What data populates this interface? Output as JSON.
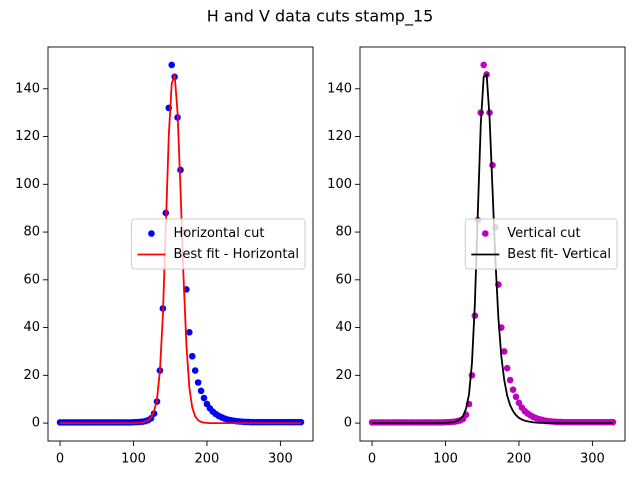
{
  "title": "H and V data cuts stamp_15",
  "chart_data": [
    {
      "type": "line",
      "legend": "center right",
      "x": [
        0,
        4,
        8,
        12,
        16,
        20,
        24,
        28,
        32,
        36,
        40,
        44,
        48,
        52,
        56,
        60,
        64,
        68,
        72,
        76,
        80,
        84,
        88,
        92,
        96,
        100,
        104,
        108,
        112,
        116,
        120,
        124,
        128,
        132,
        136,
        140,
        144,
        148,
        152,
        156,
        160,
        164,
        168,
        172,
        176,
        180,
        184,
        188,
        192,
        196,
        200,
        204,
        208,
        212,
        216,
        220,
        224,
        228,
        232,
        236,
        240,
        244,
        248,
        252,
        256,
        260,
        264,
        268,
        272,
        276,
        280,
        284,
        288,
        292,
        296,
        300,
        304,
        308,
        312,
        316,
        320,
        324,
        328
      ],
      "xlim": [
        -16.4,
        344.4
      ],
      "xticks": [
        0,
        100,
        200,
        300
      ],
      "ylim": [
        -7.5,
        157.5
      ],
      "yticks": [
        0,
        20,
        40,
        60,
        80,
        100,
        120,
        140
      ],
      "series": [
        {
          "name": "Horizontal cut",
          "kind": "scatter",
          "color": "#0000ff",
          "values": [
            0.3,
            0.3,
            0.3,
            0.3,
            0.3,
            0.3,
            0.3,
            0.3,
            0.3,
            0.3,
            0.3,
            0.3,
            0.3,
            0.3,
            0.3,
            0.3,
            0.3,
            0.3,
            0.3,
            0.3,
            0.3,
            0.3,
            0.3,
            0.3,
            0.3,
            0.4,
            0.4,
            0.5,
            0.6,
            0.8,
            1.2,
            2,
            4,
            9,
            22,
            48,
            88,
            132,
            150,
            145,
            128,
            106,
            80,
            56,
            38,
            28,
            22,
            17,
            13.5,
            10.5,
            8,
            6.2,
            4.8,
            3.8,
            3,
            2.4,
            1.9,
            1.5,
            1.2,
            1,
            0.8,
            0.7,
            0.6,
            0.5,
            0.5,
            0.4,
            0.4,
            0.4,
            0.4,
            0.4,
            0.4,
            0.4,
            0.4,
            0.4,
            0.4,
            0.4,
            0.4,
            0.4,
            0.4,
            0.4,
            0.4,
            0.4,
            0.4
          ]
        },
        {
          "name": "Best fit - Horizontal",
          "kind": "line",
          "color": "#ff0000",
          "values": [
            0,
            0,
            0,
            0,
            0,
            0,
            0,
            0,
            0,
            0,
            0,
            0,
            0,
            0,
            0,
            0,
            0,
            0,
            0,
            0,
            0,
            0,
            0,
            0,
            0,
            0,
            0.1,
            0.2,
            0.3,
            0.6,
            1.2,
            2.5,
            5,
            10,
            22,
            45,
            82,
            120,
            142,
            146,
            130,
            98,
            62,
            33,
            15,
            6.5,
            2.8,
            1.2,
            0.5,
            0.2,
            0.1,
            0,
            0,
            0,
            0,
            0,
            0,
            0,
            0,
            0,
            0,
            0,
            0,
            0,
            0,
            0,
            0,
            0,
            0,
            0,
            0,
            0,
            0,
            0,
            0,
            0,
            0,
            0,
            0,
            0,
            0,
            0,
            0
          ]
        }
      ]
    },
    {
      "type": "line",
      "legend": "center right",
      "x": [
        0,
        4,
        8,
        12,
        16,
        20,
        24,
        28,
        32,
        36,
        40,
        44,
        48,
        52,
        56,
        60,
        64,
        68,
        72,
        76,
        80,
        84,
        88,
        92,
        96,
        100,
        104,
        108,
        112,
        116,
        120,
        124,
        128,
        132,
        136,
        140,
        144,
        148,
        152,
        156,
        160,
        164,
        168,
        172,
        176,
        180,
        184,
        188,
        192,
        196,
        200,
        204,
        208,
        212,
        216,
        220,
        224,
        228,
        232,
        236,
        240,
        244,
        248,
        252,
        256,
        260,
        264,
        268,
        272,
        276,
        280,
        284,
        288,
        292,
        296,
        300,
        304,
        308,
        312,
        316,
        320,
        324,
        328
      ],
      "xlim": [
        -16.4,
        344.4
      ],
      "xticks": [
        0,
        100,
        200,
        300
      ],
      "ylim": [
        -7.5,
        157.5
      ],
      "yticks": [
        0,
        20,
        40,
        60,
        80,
        100,
        120,
        140
      ],
      "series": [
        {
          "name": "Vertical cut",
          "kind": "scatter",
          "color": "#bf00bf",
          "values": [
            0.3,
            0.3,
            0.3,
            0.3,
            0.3,
            0.3,
            0.3,
            0.3,
            0.3,
            0.3,
            0.3,
            0.3,
            0.3,
            0.3,
            0.3,
            0.3,
            0.3,
            0.3,
            0.3,
            0.3,
            0.3,
            0.3,
            0.3,
            0.3,
            0.3,
            0.4,
            0.4,
            0.5,
            0.6,
            0.8,
            1.1,
            1.8,
            3.5,
            8,
            20,
            45,
            85,
            130,
            150,
            146,
            130,
            108,
            82,
            58,
            40,
            30,
            23,
            18,
            14,
            11,
            8.5,
            6.5,
            5,
            4,
            3.2,
            2.5,
            2,
            1.6,
            1.3,
            1,
            0.8,
            0.7,
            0.6,
            0.5,
            0.5,
            0.4,
            0.4,
            0.4,
            0.4,
            0.4,
            0.4,
            0.4,
            0.4,
            0.4,
            0.4,
            0.4,
            0.4,
            0.4,
            0.4,
            0.4,
            0.4,
            0.4,
            0.4
          ]
        },
        {
          "name": "Best fit- Vertical",
          "kind": "line",
          "color": "#000000",
          "values": [
            0,
            0,
            0,
            0,
            0,
            0,
            0,
            0,
            0,
            0,
            0,
            0,
            0,
            0,
            0,
            0,
            0,
            0,
            0,
            0,
            0,
            0,
            0,
            0,
            0,
            0.1,
            0.2,
            0.3,
            0.5,
            0.9,
            1.6,
            3,
            6,
            12,
            25,
            50,
            88,
            125,
            145,
            146,
            128,
            98,
            68,
            44,
            28,
            18,
            11.5,
            7.5,
            5,
            3.3,
            2.2,
            1.5,
            1,
            0.7,
            0.5,
            0.3,
            0.2,
            0.1,
            0.1,
            0,
            0,
            0,
            0,
            0,
            0,
            0,
            0,
            0,
            0,
            0,
            0,
            0,
            0,
            0,
            0,
            0,
            0,
            0,
            0,
            0,
            0,
            0,
            0
          ]
        }
      ]
    }
  ]
}
